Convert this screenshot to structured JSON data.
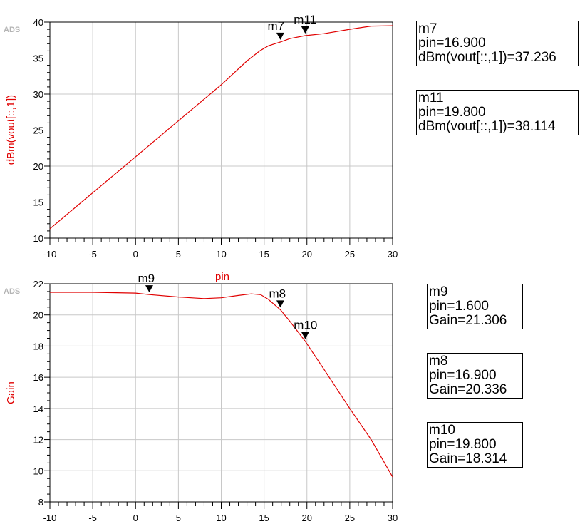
{
  "brand": "ADS",
  "colors": {
    "trace": "#e00000",
    "grid": "#c8c8c8",
    "axis": "#000000",
    "label": "#e00000"
  },
  "chart_data": [
    {
      "type": "line",
      "ylabel": "dBm(vout[::,1])",
      "xlabel": "",
      "xlim": [
        -10,
        30
      ],
      "ylim": [
        10,
        40
      ],
      "xticks": [
        "-10",
        "-5",
        "0",
        "5",
        "10",
        "15",
        "20",
        "25",
        "30"
      ],
      "yticks": [
        "10",
        "15",
        "20",
        "25",
        "30",
        "35",
        "40"
      ],
      "series": [
        {
          "values_x": [
            -10,
            -5,
            0,
            5,
            10,
            13,
            14.5,
            15.5,
            16.9,
            18,
            19.8,
            22,
            25,
            27.5,
            30
          ],
          "values_y": [
            11.3,
            16.3,
            21.3,
            26.3,
            31.3,
            34.6,
            36.0,
            36.7,
            37.236,
            37.7,
            38.114,
            38.4,
            39.0,
            39.45,
            39.5
          ]
        }
      ],
      "markers": [
        {
          "name": "m7",
          "x": 16.9,
          "y": 37.236
        },
        {
          "name": "m11",
          "x": 19.8,
          "y": 38.114
        }
      ],
      "readouts": [
        {
          "lines": [
            "m7",
            "pin=16.900",
            "dBm(vout[::,1])=37.236"
          ]
        },
        {
          "lines": [
            "m11",
            "pin=19.800",
            "dBm(vout[::,1])=38.114"
          ]
        }
      ]
    },
    {
      "type": "line",
      "ylabel": "Gain",
      "xlabel": "pin",
      "xlim": [
        -10,
        30
      ],
      "ylim": [
        8,
        22
      ],
      "xticks": [
        "-10",
        "-5",
        "0",
        "5",
        "10",
        "15",
        "20",
        "25",
        "30"
      ],
      "yticks": [
        "8",
        "10",
        "12",
        "14",
        "16",
        "18",
        "20",
        "22"
      ],
      "series": [
        {
          "values_x": [
            -10,
            -5,
            0,
            1.6,
            5,
            8,
            10,
            12,
            13.5,
            14.6,
            15.5,
            16.9,
            18,
            19.8,
            22,
            25,
            27.5,
            30
          ],
          "values_y": [
            21.45,
            21.45,
            21.4,
            21.306,
            21.15,
            21.05,
            21.1,
            21.25,
            21.35,
            21.3,
            21.0,
            20.336,
            19.6,
            18.314,
            16.5,
            14.0,
            12.0,
            9.6
          ]
        }
      ],
      "markers": [
        {
          "name": "m9",
          "x": 1.6,
          "y": 21.306
        },
        {
          "name": "m8",
          "x": 16.9,
          "y": 20.336
        },
        {
          "name": "m10",
          "x": 19.8,
          "y": 18.314
        }
      ],
      "readouts": [
        {
          "lines": [
            "m9",
            "pin=1.600",
            "Gain=21.306"
          ]
        },
        {
          "lines": [
            "m8",
            "pin=16.900",
            "Gain=20.336"
          ]
        },
        {
          "lines": [
            "m10",
            "pin=19.800",
            "Gain=18.314"
          ]
        }
      ]
    }
  ]
}
